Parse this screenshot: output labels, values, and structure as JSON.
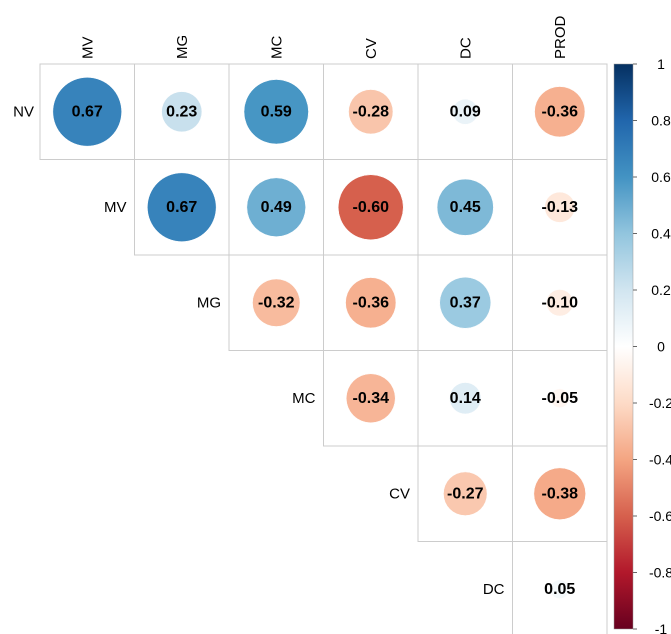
{
  "chart_data": {
    "type": "heatmap",
    "subtype": "correlation-upper-triangle",
    "columns": [
      "MV",
      "MG",
      "MC",
      "CV",
      "DC",
      "PROD"
    ],
    "rows": [
      "NV",
      "MV",
      "MG",
      "MC",
      "CV",
      "DC"
    ],
    "values": [
      [
        0.67,
        0.23,
        0.59,
        -0.28,
        0.09,
        -0.36
      ],
      [
        null,
        0.67,
        0.49,
        -0.6,
        0.45,
        -0.13
      ],
      [
        null,
        null,
        -0.32,
        -0.36,
        0.37,
        -0.1
      ],
      [
        null,
        null,
        null,
        -0.34,
        0.14,
        -0.05
      ],
      [
        null,
        null,
        null,
        null,
        -0.27,
        -0.38
      ],
      [
        null,
        null,
        null,
        null,
        null,
        0.05
      ]
    ],
    "labels": [
      [
        "0.67",
        "0.23",
        "0.59",
        "-0.28",
        "0.09",
        "-0.36"
      ],
      [
        null,
        "0.67",
        "0.49",
        "-0.60",
        "0.45",
        "-0.13"
      ],
      [
        null,
        null,
        "-0.32",
        "-0.36",
        "0.37",
        "-0.10"
      ],
      [
        null,
        null,
        null,
        "-0.34",
        "0.14",
        "-0.05"
      ],
      [
        null,
        null,
        null,
        null,
        "-0.27",
        "-0.38"
      ],
      [
        null,
        null,
        null,
        null,
        null,
        "0.05"
      ]
    ],
    "colorbar": {
      "range": [
        -1,
        1
      ],
      "ticks": [
        "1",
        "0.8",
        "0.6",
        "0.4",
        "0.2",
        "0",
        "-0.2",
        "-0.4",
        "-0.6",
        "-0.8",
        "-1"
      ],
      "colors": [
        "#053061",
        "#2166AC",
        "#4393C3",
        "#92C5DE",
        "#D1E5F0",
        "#FFFFFF",
        "#FDDBC7",
        "#F4A582",
        "#D6604D",
        "#B2182B",
        "#67001F"
      ]
    },
    "legend_position": "right",
    "title": "",
    "xlabel": "",
    "ylabel": ""
  }
}
